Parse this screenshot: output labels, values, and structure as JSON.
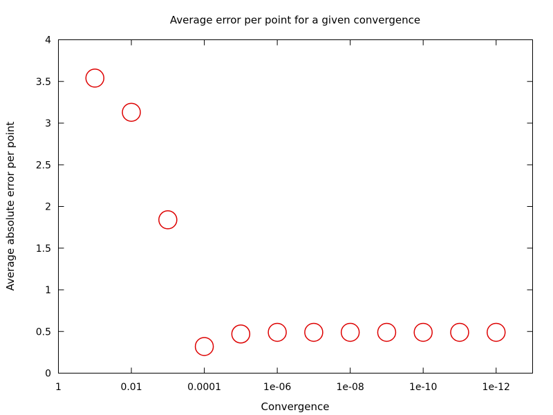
{
  "chart_data": {
    "type": "scatter",
    "title": "Average error per point for a given convergence",
    "xlabel": "Convergence",
    "ylabel": "Average absolute error per point",
    "x_scale": "log-reversed",
    "xlim": [
      1,
      1e-13
    ],
    "ylim": [
      0,
      4
    ],
    "x_ticks": [
      {
        "value": 1,
        "label": "1"
      },
      {
        "value": 0.01,
        "label": "0.01"
      },
      {
        "value": 0.0001,
        "label": "0.0001"
      },
      {
        "value": 1e-06,
        "label": "1e-06"
      },
      {
        "value": 1e-08,
        "label": "1e-08"
      },
      {
        "value": 1e-10,
        "label": "1e-10"
      },
      {
        "value": 1e-12,
        "label": "1e-12"
      }
    ],
    "y_ticks": [
      {
        "value": 0,
        "label": "0"
      },
      {
        "value": 0.5,
        "label": "0.5"
      },
      {
        "value": 1,
        "label": "1"
      },
      {
        "value": 1.5,
        "label": "1.5"
      },
      {
        "value": 2,
        "label": "2"
      },
      {
        "value": 2.5,
        "label": "2.5"
      },
      {
        "value": 3,
        "label": "3"
      },
      {
        "value": 3.5,
        "label": "3.5"
      },
      {
        "value": 4,
        "label": "4"
      }
    ],
    "grid": false,
    "marker": "open-circle",
    "marker_color": "#dd0000",
    "points": [
      {
        "x": 0.1,
        "y": 3.54
      },
      {
        "x": 0.01,
        "y": 3.13
      },
      {
        "x": 0.001,
        "y": 1.84
      },
      {
        "x": 0.0001,
        "y": 0.32
      },
      {
        "x": 1e-05,
        "y": 0.47
      },
      {
        "x": 1e-06,
        "y": 0.49
      },
      {
        "x": 1e-07,
        "y": 0.49
      },
      {
        "x": 1e-08,
        "y": 0.49
      },
      {
        "x": 1e-09,
        "y": 0.49
      },
      {
        "x": 1e-10,
        "y": 0.49
      },
      {
        "x": 1e-11,
        "y": 0.49
      },
      {
        "x": 1e-12,
        "y": 0.49
      }
    ]
  }
}
